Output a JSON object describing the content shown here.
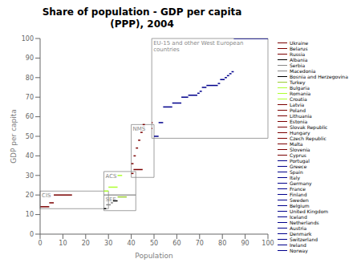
{
  "chart_data": {
    "type": "line",
    "title": "Share of population - GDP per capita\n(PPP), 2004",
    "xlabel": "Population",
    "ylabel": "GDP per capita",
    "xlim": [
      0,
      100
    ],
    "ylim": [
      0,
      100
    ],
    "xticks": [
      0,
      10,
      20,
      30,
      40,
      50,
      60,
      70,
      80,
      90,
      100
    ],
    "yticks": [
      0,
      10,
      20,
      30,
      40,
      50,
      60,
      70,
      80,
      90,
      100
    ],
    "grid": false,
    "legend": "right",
    "regions": [
      {
        "label": "CIS",
        "x": [
          0,
          30
        ],
        "y": [
          13,
          22
        ]
      },
      {
        "label": "SEE",
        "x": [
          28,
          42
        ],
        "y": [
          12,
          20
        ]
      },
      {
        "label": "ACS",
        "x": [
          28,
          42
        ],
        "y": [
          20,
          32
        ]
      },
      {
        "label": "NMS",
        "x": [
          40,
          50
        ],
        "y": [
          29,
          56
        ]
      },
      {
        "label": "EU-15 and other West European\ncountries",
        "x": [
          49,
          100
        ],
        "y": [
          49,
          100
        ]
      }
    ],
    "series": [
      {
        "name": "Ukraine",
        "color": "#7B0000",
        "x": [
          0,
          4
        ],
        "values": [
          14,
          14
        ]
      },
      {
        "name": "Belarus",
        "color": "#7B0000",
        "x": [
          4,
          6
        ],
        "values": [
          16,
          16
        ]
      },
      {
        "name": "Russia",
        "color": "#7B0000",
        "x": [
          6,
          14
        ],
        "values": [
          20,
          20
        ]
      },
      {
        "name": "Albania",
        "color": "#000000",
        "x": [
          28,
          29
        ],
        "values": [
          13,
          13
        ]
      },
      {
        "name": "Serbia",
        "color": "#888888",
        "x": [
          29,
          31
        ],
        "values": [
          15,
          15
        ]
      },
      {
        "name": "Macedonia",
        "color": "#888888",
        "x": [
          31,
          32
        ],
        "values": [
          16,
          16
        ]
      },
      {
        "name": "Bosnia and Herzegovina",
        "color": "#000000",
        "x": [
          32,
          34
        ],
        "values": [
          17,
          17
        ]
      },
      {
        "name": "Turkey",
        "color": "#9ACD32",
        "x": [
          34,
          38
        ],
        "values": [
          19,
          19
        ]
      },
      {
        "name": "Bulgaria",
        "color": "#ADFF2F",
        "x": [
          28,
          30
        ],
        "values": [
          22,
          22
        ]
      },
      {
        "name": "Romania",
        "color": "#ADFF2F",
        "x": [
          30,
          34
        ],
        "values": [
          24,
          24
        ]
      },
      {
        "name": "Croatia",
        "color": "#ADFF2F",
        "x": [
          34,
          36
        ],
        "values": [
          30,
          30
        ]
      },
      {
        "name": "Latvia",
        "color": "#7B0000",
        "x": [
          40,
          41
        ],
        "values": [
          31,
          31
        ]
      },
      {
        "name": "Poland",
        "color": "#7B0000",
        "x": [
          41,
          45
        ],
        "values": [
          33,
          33
        ]
      },
      {
        "name": "Lithuania",
        "color": "#7B0000",
        "x": [
          40,
          41
        ],
        "values": [
          36,
          36
        ]
      },
      {
        "name": "Estonia",
        "color": "#7B0000",
        "x": [
          41,
          42
        ],
        "values": [
          40,
          40
        ]
      },
      {
        "name": "Slovak Republic",
        "color": "#7B0000",
        "x": [
          42,
          43
        ],
        "values": [
          44,
          44
        ]
      },
      {
        "name": "Hungary",
        "color": "#7B0000",
        "x": [
          43,
          44
        ],
        "values": [
          48,
          48
        ]
      },
      {
        "name": "Czech Republic",
        "color": "#7B0000",
        "x": [
          44,
          45
        ],
        "values": [
          52,
          52
        ]
      },
      {
        "name": "Malta",
        "color": "#7B0000",
        "x": [
          49,
          49.3
        ],
        "values": [
          54,
          54
        ]
      },
      {
        "name": "Slovenia",
        "color": "#7B0000",
        "x": [
          45,
          46
        ],
        "values": [
          56,
          56
        ]
      },
      {
        "name": "Cyprus",
        "color": "#7B0000",
        "x": [
          49,
          49.4
        ],
        "values": [
          57,
          57
        ]
      },
      {
        "name": "Portugal",
        "color": "#00008B",
        "x": [
          50,
          52
        ],
        "values": [
          50,
          50
        ]
      },
      {
        "name": "Greece",
        "color": "#00008B",
        "x": [
          52,
          54
        ],
        "values": [
          57,
          57
        ]
      },
      {
        "name": "Spain",
        "color": "#00008B",
        "x": [
          54,
          58
        ],
        "values": [
          65,
          65
        ]
      },
      {
        "name": "Italy",
        "color": "#00008B",
        "x": [
          58,
          62
        ],
        "values": [
          67,
          67
        ]
      },
      {
        "name": "Germany",
        "color": "#00008B",
        "x": [
          62,
          65
        ],
        "values": [
          70,
          70
        ]
      },
      {
        "name": "France",
        "color": "#00008B",
        "x": [
          65,
          69
        ],
        "values": [
          71,
          71
        ]
      },
      {
        "name": "Finland",
        "color": "#00008B",
        "x": [
          69,
          70
        ],
        "values": [
          72,
          72
        ]
      },
      {
        "name": "Sweden",
        "color": "#00008B",
        "x": [
          70,
          71
        ],
        "values": [
          73,
          73
        ]
      },
      {
        "name": "Belgium",
        "color": "#00008B",
        "x": [
          71,
          73
        ],
        "values": [
          75,
          75
        ]
      },
      {
        "name": "United Kingdom",
        "color": "#00008B",
        "x": [
          73,
          78
        ],
        "values": [
          76,
          76
        ]
      },
      {
        "name": "Iceland",
        "color": "#00008B",
        "x": [
          78,
          79
        ],
        "values": [
          77,
          77
        ]
      },
      {
        "name": "Netherlands",
        "color": "#00008B",
        "x": [
          79,
          81
        ],
        "values": [
          79,
          79
        ]
      },
      {
        "name": "Austria",
        "color": "#00008B",
        "x": [
          81,
          82
        ],
        "values": [
          80,
          80
        ]
      },
      {
        "name": "Denmark",
        "color": "#00008B",
        "x": [
          82,
          83
        ],
        "values": [
          81,
          81
        ]
      },
      {
        "name": "Switzerland",
        "color": "#00008B",
        "x": [
          83,
          84
        ],
        "values": [
          82,
          82
        ]
      },
      {
        "name": "Ireland",
        "color": "#00008B",
        "x": [
          84,
          85
        ],
        "values": [
          83,
          83
        ]
      },
      {
        "name": "Norway",
        "color": "#00008B",
        "x": [
          85,
          100
        ],
        "values": [
          100,
          100
        ]
      }
    ]
  }
}
